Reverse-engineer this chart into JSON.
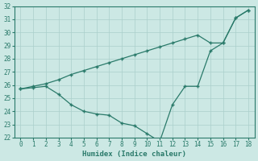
{
  "xlabel": "Humidex (Indice chaleur)",
  "bg_color": "#cce8e4",
  "line_color": "#2a7a6a",
  "grid_color": "#aacfcb",
  "line1_x": [
    0,
    1,
    2,
    3,
    4,
    5,
    6,
    7,
    8,
    9,
    10,
    11,
    12,
    13,
    14,
    15,
    16,
    17,
    18
  ],
  "line1_y": [
    25.7,
    25.9,
    26.1,
    26.4,
    26.8,
    27.1,
    27.4,
    27.7,
    28.0,
    28.3,
    28.6,
    28.9,
    29.2,
    29.5,
    29.8,
    29.2,
    29.2,
    31.1,
    31.7
  ],
  "line2_x": [
    0,
    1,
    2,
    3,
    4,
    5,
    6,
    7,
    8,
    9,
    10,
    11,
    12,
    13,
    14,
    15,
    16,
    17,
    18
  ],
  "line2_y": [
    25.7,
    25.8,
    25.9,
    25.3,
    24.5,
    24.0,
    23.8,
    23.7,
    23.1,
    22.9,
    22.3,
    21.7,
    24.5,
    25.9,
    25.9,
    28.6,
    29.2,
    31.1,
    31.7
  ],
  "ylim": [
    22,
    32
  ],
  "xlim": [
    -0.5,
    18.5
  ],
  "yticks": [
    22,
    23,
    24,
    25,
    26,
    27,
    28,
    29,
    30,
    31,
    32
  ],
  "xticks": [
    0,
    1,
    2,
    3,
    4,
    5,
    6,
    7,
    8,
    9,
    10,
    11,
    12,
    13,
    14,
    15,
    16,
    17,
    18
  ],
  "marker": "+",
  "markersize": 3.5,
  "linewidth": 0.9,
  "axis_fontsize": 6.5,
  "tick_fontsize": 5.5
}
